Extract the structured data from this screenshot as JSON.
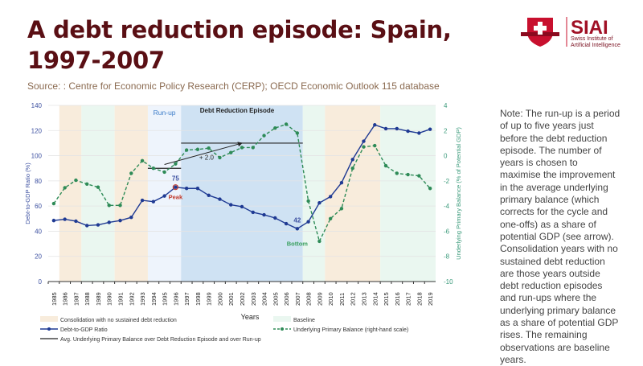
{
  "title": "A debt reduction episode: Spain, 1997-2007",
  "source": "Source: : Centre for Economic Policy Research (CERP); OECD Economic Outlook 115 database",
  "note": "Note: The run-up is a period of up to five years just before the debt reduction episode. The number of years is chosen to maximise the improvement in the average underlying primary balance (which corrects for the cycle and one-offs) as a share of potential GDP (see arrow). Consolidation years with no sustained debt reduction are those years outside debt reduction episodes and run-ups where the underlying primary balance as a share of potential GDP rises. The remaining observations are baseline years.",
  "logo": {
    "name": "SIAI",
    "sub1": "Swiss Institute of",
    "sub2": "Artificial Intelligence"
  },
  "chart_data": {
    "type": "line",
    "xlabel": "Years",
    "ylabel": "Debt-to-GDP Ratio (%)",
    "y2label": "Underlying Primary Balance (% of Potential GDP)",
    "ylim": [
      0,
      140
    ],
    "y2lim": [
      -10,
      4
    ],
    "yticks": [
      0,
      20,
      40,
      60,
      80,
      100,
      120,
      140
    ],
    "y2ticks": [
      -10,
      -8,
      -6,
      -4,
      -2,
      0,
      2,
      4
    ],
    "x": [
      1985,
      1986,
      1987,
      1988,
      1989,
      1990,
      1991,
      1992,
      1993,
      1994,
      1995,
      1996,
      1997,
      1998,
      1999,
      2000,
      2001,
      2002,
      2003,
      2004,
      2005,
      2006,
      2007,
      2008,
      2009,
      2010,
      2011,
      2012,
      2013,
      2014,
      2015,
      2016,
      2017,
      2018,
      2019
    ],
    "series": [
      {
        "name": "Debt-to-GDP Ratio",
        "axis": "left",
        "color": "#1f3a93",
        "values": [
          48.5,
          49.5,
          48,
          44.5,
          45,
          47,
          48.5,
          51,
          64.5,
          63.5,
          68,
          75,
          74,
          74,
          68.5,
          65.5,
          61,
          59.5,
          55,
          53,
          50.5,
          46,
          42,
          47.5,
          62.5,
          67.5,
          78.5,
          97,
          111.5,
          124.5,
          121.5,
          121.5,
          119.5,
          118,
          121
        ]
      },
      {
        "name": "Underlying Primary Balance (right-hand scale)",
        "axis": "right",
        "color": "#2e8b57",
        "values": [
          -3.8,
          -2.55,
          -1.95,
          -2.25,
          -2.5,
          -3.95,
          -3.95,
          -1.4,
          -0.4,
          -1.0,
          -1.3,
          -0.65,
          0.45,
          0.5,
          0.6,
          -0.15,
          0.25,
          0.65,
          0.65,
          1.6,
          2.2,
          2.5,
          1.8,
          -3.6,
          -6.8,
          -5.0,
          -4.2,
          -1.0,
          0.7,
          0.8,
          -0.8,
          -1.4,
          -1.5,
          -1.6,
          -2.6
        ]
      }
    ],
    "bands": [
      {
        "type": "consolidation",
        "from": 1986,
        "to": 1987
      },
      {
        "type": "baseline",
        "from": 1988,
        "to": 1990
      },
      {
        "type": "consolidation",
        "from": 1991,
        "to": 1993
      },
      {
        "type": "runup",
        "from": 1994,
        "to": 1996
      },
      {
        "type": "episode",
        "from": 1997,
        "to": 2007
      },
      {
        "type": "baseline",
        "from": 2008,
        "to": 2009
      },
      {
        "type": "consolidation",
        "from": 2010,
        "to": 2014
      },
      {
        "type": "baseline",
        "from": 2015,
        "to": 2019
      }
    ],
    "band_colors": {
      "consolidation": "#f8ecdc",
      "baseline": "#eaf7f0",
      "runup": "#eef4fc",
      "episode": "#cfe2f3"
    },
    "avg_lines": [
      {
        "from": 1994,
        "to": 1996,
        "value": -1.0
      },
      {
        "from": 1997,
        "to": 2007,
        "value": 1.0
      }
    ],
    "arrow": {
      "from": [
        1995,
        -0.7
      ],
      "to": [
        2002,
        1.0
      ],
      "label": "+ 2.0"
    },
    "annotations": {
      "runup": "Run-up",
      "episode": "Debt Reduction Episode",
      "peak_value": "75",
      "peak": "Peak",
      "bottom_value": "42",
      "bottom": "Bottom"
    },
    "legend": {
      "consolidation": "Consolidation with no sustained debt reduction",
      "baseline": "Baseline",
      "debt": "Debt-to-GDP Ratio",
      "upb": "Underlying Primary Balance (right-hand scale)",
      "avg": "Avg. Underlying Primary Balance over Debt Reduction Episode and over Run-up"
    }
  }
}
